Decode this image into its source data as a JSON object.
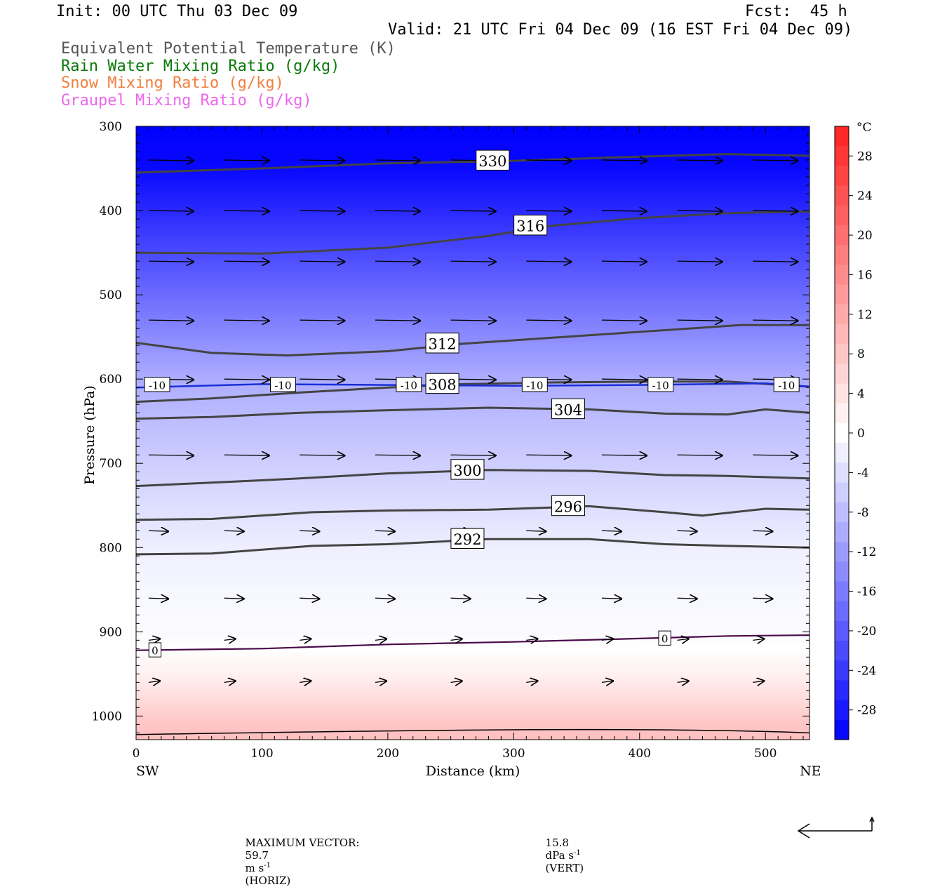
{
  "header": {
    "init": "Init: 00 UTC Thu 03 Dec 09",
    "fcst": "Fcst:  45 h",
    "valid": "Valid: 21 UTC Fri 04 Dec 09 (16 EST Fri 04 Dec 09)"
  },
  "legend": [
    {
      "label": "Equivalent Potential Temperature (K)",
      "color": "#555555"
    },
    {
      "label": "Rain Water Mixing Ratio (g/kg)",
      "color": "#0a7a0a"
    },
    {
      "label": "Snow Mixing Ratio (g/kg)",
      "color": "#f08040"
    },
    {
      "label": "Graupel Mixing Ratio (g/kg)",
      "color": "#ee66ee"
    }
  ],
  "axes": {
    "ylabel": "Pressure (hPa)",
    "xlabel": "Distance (km)",
    "left_end": "SW",
    "right_end": "NE"
  },
  "colorbar": {
    "unit": "°C",
    "ticks": [
      "28",
      "24",
      "20",
      "16",
      "12",
      "8",
      "4",
      "0",
      "-4",
      "-8",
      "-12",
      "-16",
      "-20",
      "-24",
      "-28"
    ]
  },
  "footer": {
    "max_vector_label": "MAXIMUM VECTOR:",
    "horiz_value": "59.7",
    "horiz_unit": "m s",
    "horiz_exp": "-1",
    "horiz_tag": "(HORIZ)",
    "vert_value": "15.8",
    "vert_unit": "dPa s",
    "vert_exp": "-1",
    "vert_tag": "(VERT)"
  },
  "chart_data": {
    "type": "heatmap",
    "description_fields": "cross-section of temperature (color fill), theta-e contours, wind vectors",
    "x_ticks": [
      0,
      100,
      200,
      300,
      400,
      500
    ],
    "y_ticks": [
      300,
      400,
      500,
      600,
      700,
      800,
      900,
      1000
    ],
    "xlim": [
      0,
      535
    ],
    "ylim": [
      1028,
      300
    ],
    "temperature_by_pressure": [
      {
        "p": 300,
        "t": -31
      },
      {
        "p": 350,
        "t": -30
      },
      {
        "p": 400,
        "t": -26
      },
      {
        "p": 450,
        "t": -22
      },
      {
        "p": 500,
        "t": -18
      },
      {
        "p": 550,
        "t": -14
      },
      {
        "p": 600,
        "t": -10
      },
      {
        "p": 650,
        "t": -8
      },
      {
        "p": 700,
        "t": -6
      },
      {
        "p": 750,
        "t": -4
      },
      {
        "p": 800,
        "t": -2
      },
      {
        "p": 850,
        "t": -1
      },
      {
        "p": 900,
        "t": -0.5
      },
      {
        "p": 920,
        "t": 0
      },
      {
        "p": 950,
        "t": 2
      },
      {
        "p": 980,
        "t": 5
      },
      {
        "p": 1010,
        "t": 8
      },
      {
        "p": 1028,
        "t": 9
      }
    ],
    "theta_e_contours": [
      {
        "value": 330,
        "points": [
          [
            0,
            355
          ],
          [
            100,
            350
          ],
          [
            200,
            344
          ],
          [
            300,
            341
          ],
          [
            400,
            336
          ],
          [
            470,
            333
          ],
          [
            535,
            335
          ]
        ]
      },
      {
        "value": 316,
        "points": [
          [
            0,
            450
          ],
          [
            100,
            451
          ],
          [
            200,
            444
          ],
          [
            280,
            430
          ],
          [
            330,
            418
          ],
          [
            400,
            409
          ],
          [
            470,
            403
          ],
          [
            535,
            401
          ]
        ]
      },
      {
        "value": 312,
        "points": [
          [
            0,
            557
          ],
          [
            60,
            569
          ],
          [
            120,
            572
          ],
          [
            200,
            567
          ],
          [
            260,
            558
          ],
          [
            340,
            550
          ],
          [
            420,
            542
          ],
          [
            480,
            536
          ],
          [
            535,
            536
          ]
        ]
      },
      {
        "value": 308,
        "points": [
          [
            0,
            627
          ],
          [
            60,
            623
          ],
          [
            130,
            616
          ],
          [
            200,
            610
          ],
          [
            260,
            606
          ],
          [
            330,
            604
          ],
          [
            400,
            603
          ],
          [
            470,
            603
          ],
          [
            535,
            609
          ]
        ]
      },
      {
        "value": 304,
        "points": [
          [
            0,
            647
          ],
          [
            60,
            645
          ],
          [
            130,
            640
          ],
          [
            200,
            637
          ],
          [
            280,
            634
          ],
          [
            360,
            636
          ],
          [
            420,
            641
          ],
          [
            470,
            642
          ],
          [
            500,
            636
          ],
          [
            535,
            640
          ]
        ]
      },
      {
        "value": 300,
        "points": [
          [
            0,
            727
          ],
          [
            60,
            723
          ],
          [
            130,
            718
          ],
          [
            200,
            712
          ],
          [
            280,
            708
          ],
          [
            360,
            709
          ],
          [
            420,
            714
          ],
          [
            470,
            715
          ],
          [
            535,
            718
          ]
        ]
      },
      {
        "value": 296,
        "points": [
          [
            0,
            767
          ],
          [
            60,
            766
          ],
          [
            140,
            758
          ],
          [
            200,
            756
          ],
          [
            280,
            755
          ],
          [
            360,
            751
          ],
          [
            420,
            758
          ],
          [
            450,
            762
          ],
          [
            500,
            754
          ],
          [
            535,
            755
          ]
        ]
      },
      {
        "value": 292,
        "points": [
          [
            0,
            808
          ],
          [
            60,
            807
          ],
          [
            140,
            798
          ],
          [
            200,
            796
          ],
          [
            280,
            790
          ],
          [
            360,
            790
          ],
          [
            420,
            796
          ],
          [
            470,
            798
          ],
          [
            535,
            800
          ]
        ]
      }
    ],
    "rain_zero_contours": [
      {
        "value": 0,
        "points": [
          [
            0,
            922
          ],
          [
            100,
            920
          ],
          [
            200,
            915
          ],
          [
            300,
            912
          ],
          [
            400,
            908
          ],
          [
            470,
            905
          ],
          [
            535,
            904
          ]
        ]
      }
    ],
    "minus10_isotherm": {
      "value": -10,
      "points": [
        [
          0,
          610
        ],
        [
          100,
          606
        ],
        [
          200,
          607
        ],
        [
          300,
          608
        ],
        [
          400,
          607
        ],
        [
          500,
          605
        ],
        [
          535,
          609
        ]
      ]
    },
    "wind_levels_hpa": [
      340,
      400,
      460,
      530,
      600,
      690,
      780,
      860,
      910,
      960
    ],
    "max_vector": {
      "horiz_m_s": 59.7,
      "vert_dpa_s": 15.8
    }
  }
}
